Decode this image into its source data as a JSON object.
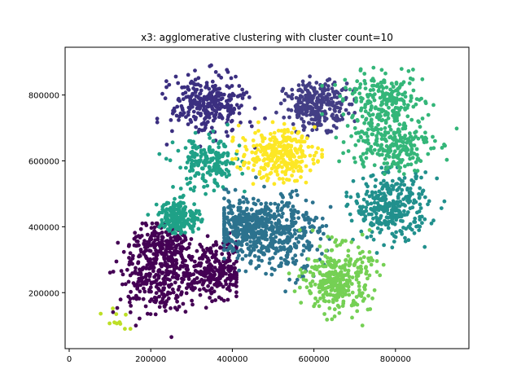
{
  "chart_data": {
    "type": "scatter",
    "title": "x3: agglomerative clustering with cluster count=10",
    "xlabel": "",
    "ylabel": "",
    "xlim": [
      -10000,
      980000
    ],
    "ylim": [
      30000,
      945000
    ],
    "xticks": [
      0,
      200000,
      400000,
      600000,
      800000
    ],
    "xtick_labels": [
      "0",
      "200000",
      "400000",
      "600000",
      "800000"
    ],
    "yticks": [
      200000,
      400000,
      600000,
      800000
    ],
    "ytick_labels": [
      "200000",
      "400000",
      "600000",
      "800000"
    ],
    "grid": false,
    "legend": "none",
    "clusters": [
      {
        "color": "#440154",
        "centers": [
          [
            220000,
            230000,
            50000,
            55000
          ],
          [
            230000,
            330000,
            40000,
            40000
          ],
          [
            360000,
            270000,
            40000,
            40000
          ]
        ],
        "count": 720,
        "extent": [
          [
            40000,
            65000
          ],
          [
            410000,
            410000
          ]
        ]
      },
      {
        "color": "#3b2f80",
        "centers": [
          [
            340000,
            770000,
            45000,
            45000
          ]
        ],
        "count": 300,
        "extent": [
          [
            190000,
            640000
          ],
          [
            480000,
            890000
          ]
        ]
      },
      {
        "color": "#433e85",
        "centers": [
          [
            610000,
            770000,
            40000,
            35000
          ]
        ],
        "count": 280,
        "extent": [
          [
            500000,
            660000
          ],
          [
            700000,
            880000
          ]
        ]
      },
      {
        "color": "#2c728e",
        "centers": [
          [
            520000,
            380000,
            50000,
            60000
          ],
          [
            430000,
            400000,
            40000,
            40000
          ]
        ],
        "count": 650,
        "extent": [
          [
            380000,
            140000
          ],
          [
            660000,
            550000
          ]
        ]
      },
      {
        "color": "#21908d",
        "centers": [
          [
            790000,
            460000,
            45000,
            50000
          ]
        ],
        "count": 330,
        "extent": [
          [
            680000,
            290000
          ],
          [
            920000,
            580000
          ]
        ]
      },
      {
        "color": "#1fa187",
        "centers": [
          [
            340000,
            590000,
            40000,
            40000
          ],
          [
            270000,
            430000,
            25000,
            25000
          ]
        ],
        "count": 380,
        "extent": [
          [
            190000,
            380000
          ],
          [
            430000,
            710000
          ]
        ]
      },
      {
        "color": "#34b679",
        "centers": [
          [
            770000,
            780000,
            50000,
            40000
          ],
          [
            790000,
            650000,
            50000,
            40000
          ]
        ],
        "count": 460,
        "extent": [
          [
            620000,
            560000
          ],
          [
            950000,
            930000
          ]
        ]
      },
      {
        "color": "#75d054",
        "centers": [
          [
            660000,
            240000,
            40000,
            50000
          ]
        ],
        "count": 330,
        "extent": [
          [
            520000,
            70000
          ],
          [
            850000,
            390000
          ]
        ]
      },
      {
        "color": "#bddf26",
        "centers": [
          [
            110000,
            125000,
            18000,
            22000
          ]
        ],
        "count": 12,
        "extent": [
          [
            70000,
            90000
          ],
          [
            150000,
            170000
          ]
        ]
      },
      {
        "color": "#fde725",
        "centers": [
          [
            510000,
            620000,
            45000,
            38000
          ]
        ],
        "count": 290,
        "extent": [
          [
            400000,
            530000
          ],
          [
            620000,
            730000
          ]
        ]
      }
    ]
  }
}
